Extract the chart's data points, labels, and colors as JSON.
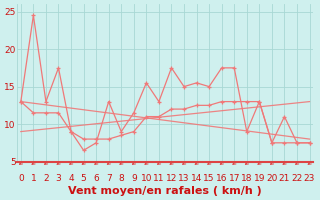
{
  "bg_color": "#cff0ee",
  "grid_color": "#a8d8d4",
  "line_color": "#f07878",
  "arrow_color": "#dd4444",
  "xlabel": "Vent moyen/en rafales ( km/h )",
  "xlabel_color": "#cc1111",
  "x_values": [
    0,
    1,
    2,
    3,
    4,
    5,
    6,
    7,
    8,
    9,
    10,
    11,
    12,
    13,
    14,
    15,
    16,
    17,
    18,
    19,
    20,
    21,
    22,
    23
  ],
  "rafales": [
    13,
    24.5,
    13,
    17.5,
    9,
    6.5,
    7.5,
    13,
    9,
    11.5,
    15.5,
    13,
    17.5,
    15,
    15.5,
    15,
    17.5,
    17.5,
    9,
    13,
    7.5,
    11,
    7.5,
    7.5
  ],
  "moyen": [
    13,
    11.5,
    11.5,
    11.5,
    9,
    8,
    8,
    8,
    8.5,
    9,
    11,
    11,
    12,
    12,
    12.5,
    12.5,
    13,
    13,
    13,
    13,
    7.5,
    7.5,
    7.5,
    7.5
  ],
  "trend_rafales_start": 13,
  "trend_rafales_end": 8,
  "trend_moyen_start": 9,
  "trend_moyen_end": 13,
  "ylim": [
    5,
    26
  ],
  "xlim": [
    -0.3,
    23.3
  ],
  "yticks": [
    5,
    10,
    15,
    20,
    25
  ],
  "tick_fontsize": 6.5,
  "xlabel_fontsize": 8,
  "spine_color": "#dd4444",
  "marker_size": 3,
  "lw": 0.9
}
